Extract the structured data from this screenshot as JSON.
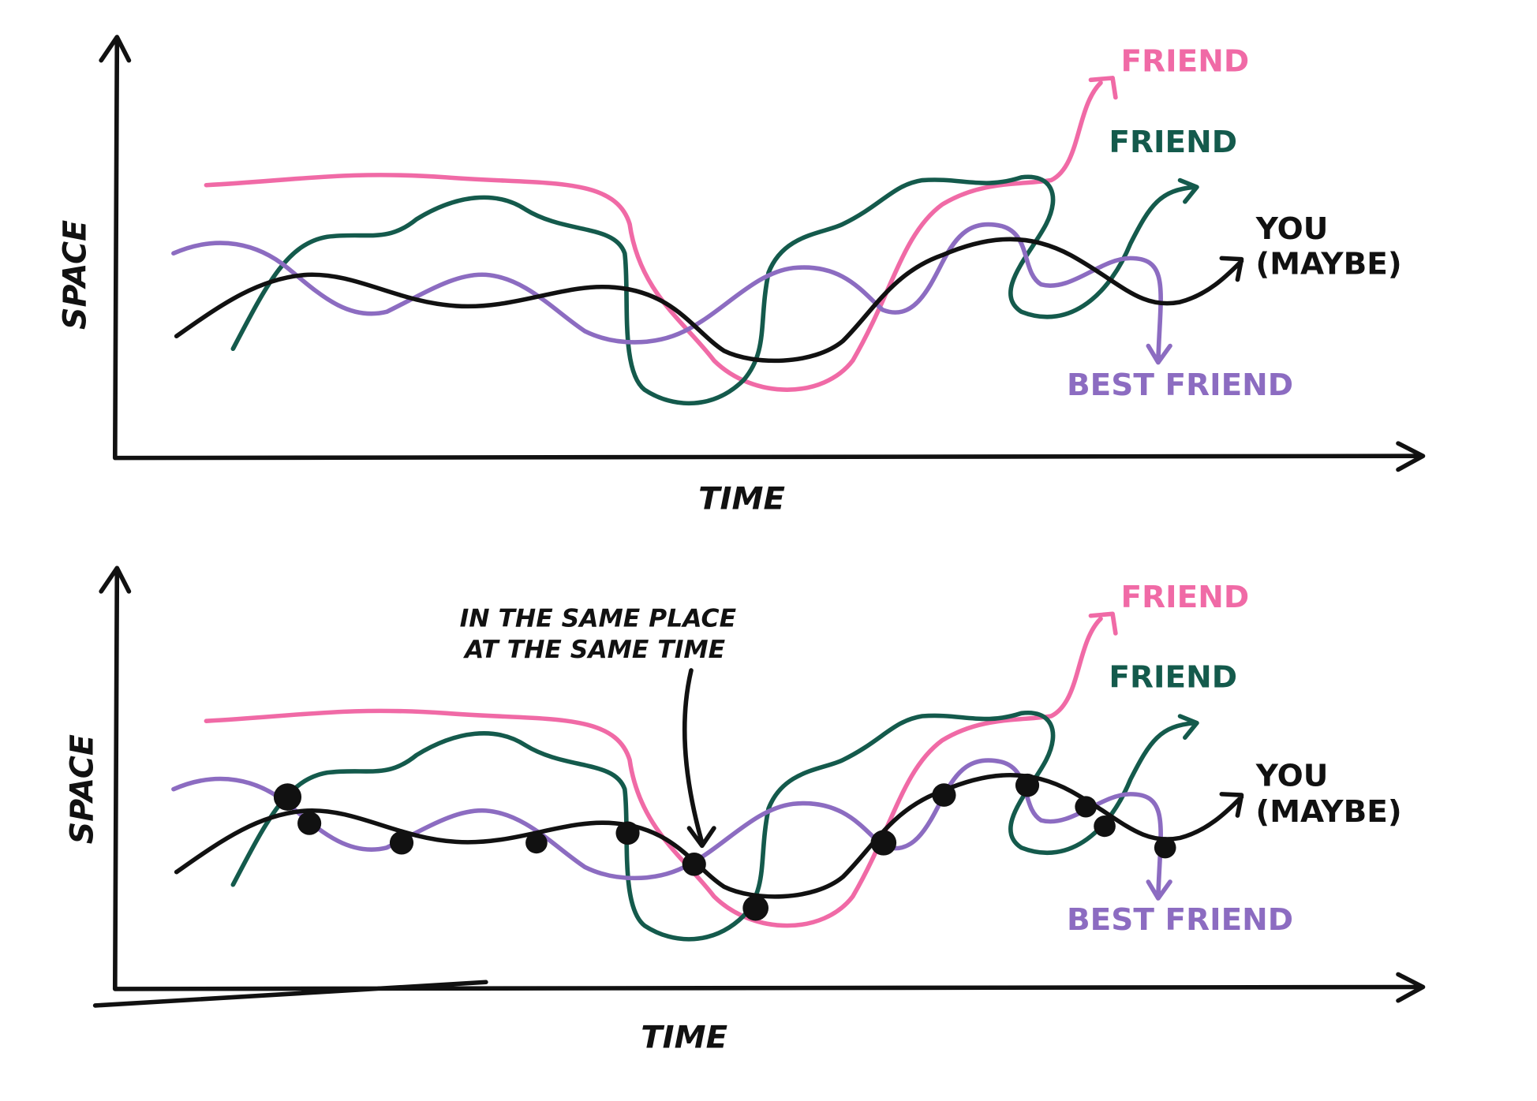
{
  "panels": [
    {
      "y_axis_label": "SPACE",
      "x_axis_label": "TIME",
      "line_labels": {
        "friend_pink": "FRIEND",
        "friend_green": "FRIEND",
        "you": [
          "YOU",
          "(MAYBE)"
        ],
        "best_friend": "BEST FRIEND"
      }
    },
    {
      "y_axis_label": "SPACE",
      "x_axis_label": "TIME",
      "line_labels": {
        "friend_pink": "FRIEND",
        "friend_green": "FRIEND",
        "you": [
          "YOU",
          "(MAYBE)"
        ],
        "best_friend": "BEST FRIEND"
      },
      "annotation": [
        "IN THE SAME PLACE",
        "AT THE SAME TIME"
      ]
    }
  ]
}
